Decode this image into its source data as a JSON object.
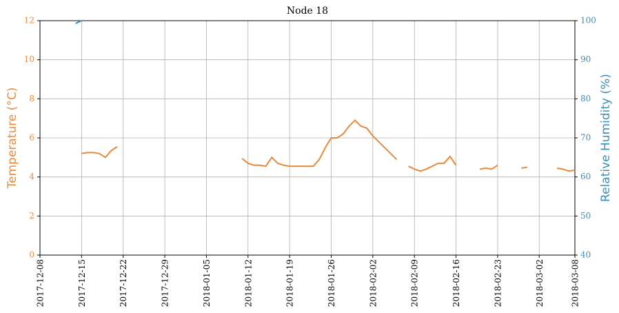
{
  "chart_data": {
    "type": "line",
    "title": "Node 18",
    "ylabel": "Temperature (°C)",
    "y2label": "Relative Humidity (%)",
    "xlim": [
      "2017-12-08",
      "2018-03-08"
    ],
    "xticks": [
      "2017-12-08",
      "2017-12-15",
      "2017-12-22",
      "2017-12-29",
      "2018-01-05",
      "2018-01-12",
      "2018-01-19",
      "2018-01-26",
      "2018-02-02",
      "2018-02-09",
      "2018-02-16",
      "2018-02-23",
      "2018-03-02",
      "2018-03-08"
    ],
    "ylim": [
      0,
      12
    ],
    "yticks": [
      0,
      2,
      4,
      6,
      8,
      10,
      12
    ],
    "y2lim": [
      40,
      100
    ],
    "y2ticks": [
      40,
      50,
      60,
      70,
      80,
      90,
      100
    ],
    "grid": true,
    "series": [
      {
        "name": "Temperature",
        "color": "#e8893a",
        "x": [
          "2017-12-15",
          "2017-12-16",
          "2017-12-17",
          "2017-12-18",
          "2017-12-19",
          "2017-12-20",
          "2017-12-21",
          "2017-12-22",
          "2018-01-11",
          "2018-01-12",
          "2018-01-13",
          "2018-01-14",
          "2018-01-15",
          "2018-01-16",
          "2018-01-17",
          "2018-01-18",
          "2018-01-19",
          "2018-01-20",
          "2018-01-21",
          "2018-01-22",
          "2018-01-23",
          "2018-01-24",
          "2018-01-25",
          "2018-01-26",
          "2018-01-27",
          "2018-01-28",
          "2018-01-29",
          "2018-01-30",
          "2018-01-31",
          "2018-02-01",
          "2018-02-02",
          "2018-02-03",
          "2018-02-04",
          "2018-02-05",
          "2018-02-06",
          "2018-02-07",
          "2018-02-08",
          "2018-02-09",
          "2018-02-10",
          "2018-02-11",
          "2018-02-12",
          "2018-02-13",
          "2018-02-14",
          "2018-02-15",
          "2018-02-16",
          "2018-02-17",
          "2018-02-20",
          "2018-02-21",
          "2018-02-22",
          "2018-02-23",
          "2018-02-24",
          "2018-02-27",
          "2018-02-28",
          "2018-03-01",
          "2018-03-05",
          "2018-03-06",
          "2018-03-07",
          "2018-03-08"
        ],
        "values": [
          5.2,
          5.25,
          5.25,
          5.2,
          5.0,
          5.35,
          5.55,
          null,
          4.95,
          4.7,
          4.6,
          4.6,
          4.55,
          5.0,
          4.7,
          4.6,
          4.55,
          4.55,
          4.55,
          4.55,
          4.55,
          4.9,
          5.5,
          6.0,
          6.0,
          6.2,
          6.6,
          6.9,
          6.6,
          6.5,
          6.1,
          5.8,
          5.5,
          5.2,
          4.9,
          null,
          4.55,
          4.4,
          4.3,
          4.4,
          4.55,
          4.7,
          4.7,
          5.05,
          4.6,
          null,
          4.4,
          4.45,
          4.4,
          4.6,
          null,
          4.45,
          4.5,
          null,
          4.45,
          4.4,
          4.3,
          4.35
        ]
      },
      {
        "name": "Relative Humidity",
        "color": "#3a8fb7",
        "axis": "y2",
        "x": [
          "2017-12-14",
          "2017-12-15"
        ],
        "values": [
          99.3,
          100
        ]
      }
    ]
  }
}
